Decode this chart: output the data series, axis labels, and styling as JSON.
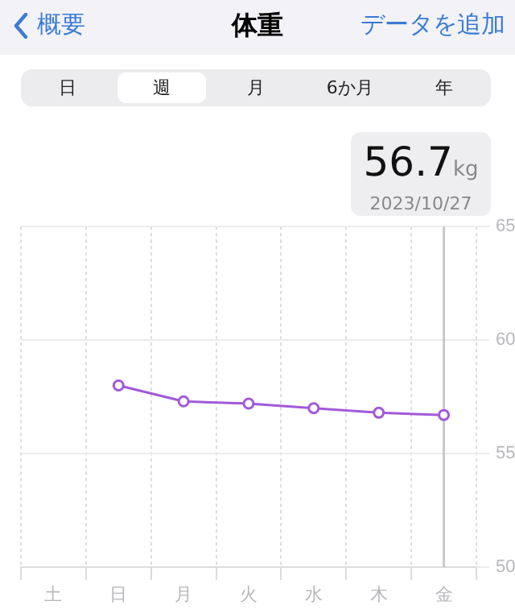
{
  "chart_data": {
    "type": "line",
    "title": "体重",
    "categories": [
      "土",
      "日",
      "月",
      "火",
      "水",
      "木",
      "金"
    ],
    "series": [
      {
        "color": "#a259d9",
        "values": [
          null,
          58.0,
          57.3,
          57.2,
          57.0,
          56.8,
          56.7
        ]
      }
    ],
    "ylim": [
      50,
      65
    ],
    "yticks": [
      50,
      55,
      60,
      65
    ],
    "grid": true,
    "marker": "circle",
    "line_style": "solid",
    "legend": false,
    "ref_lines": [
      {
        "axis": "x",
        "value": "金",
        "color": "#c7c7cc"
      }
    ],
    "annotations": [
      "概要",
      "データを追加",
      "日",
      "週",
      "月",
      "6か月",
      "年",
      "56.7",
      "kg",
      "2023/10/27"
    ]
  }
}
